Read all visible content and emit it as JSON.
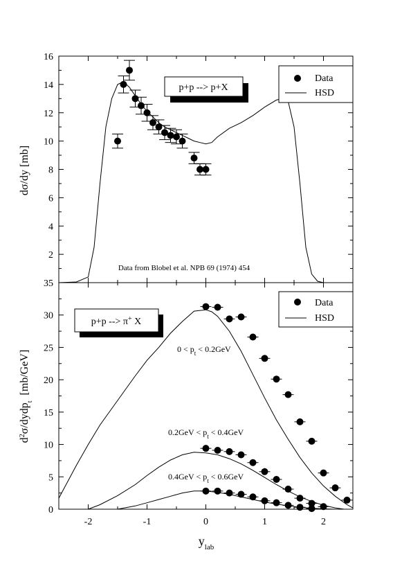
{
  "chart_data": [
    {
      "type": "scatter",
      "ylabel": "dσ/dy [mb]",
      "xlim": [
        -2.5,
        2.5
      ],
      "ylim": [
        0,
        16
      ],
      "y_ticks": [
        "2",
        "4",
        "6",
        "8",
        "10",
        "12",
        "14",
        "16"
      ],
      "reaction_label": "p+p --> p+X",
      "note": "Data from Blobel et al. NPB 69 (1974) 454",
      "legend": {
        "position": "top-right",
        "data_label": "Data",
        "model_label": "HSD"
      },
      "series": [
        {
          "name": "Data",
          "points": [
            {
              "x": -1.5,
              "y": 10.0,
              "err": 0.5
            },
            {
              "x": -1.4,
              "y": 14.0,
              "err": 0.6
            },
            {
              "x": -1.3,
              "y": 15.0,
              "err": 0.7
            },
            {
              "x": -1.2,
              "y": 13.0,
              "err": 0.6
            },
            {
              "x": -1.1,
              "y": 12.5,
              "err": 0.6
            },
            {
              "x": -1.0,
              "y": 12.0,
              "err": 0.6
            },
            {
              "x": -0.9,
              "y": 11.3,
              "err": 0.5
            },
            {
              "x": -0.8,
              "y": 11.0,
              "err": 0.5
            },
            {
              "x": -0.7,
              "y": 10.6,
              "err": 0.5
            },
            {
              "x": -0.6,
              "y": 10.4,
              "err": 0.5
            },
            {
              "x": -0.5,
              "y": 10.3,
              "err": 0.5
            },
            {
              "x": -0.4,
              "y": 10.0,
              "err": 0.5
            },
            {
              "x": -0.2,
              "y": 8.8,
              "err": 0.4
            },
            {
              "x": -0.1,
              "y": 8.0,
              "err": 0.4
            },
            {
              "x": 0.0,
              "y": 8.0,
              "err": 0.4
            }
          ]
        },
        {
          "name": "HSD",
          "line": [
            [
              -2.5,
              0.0
            ],
            [
              -2.2,
              0.05
            ],
            [
              -2.0,
              0.4
            ],
            [
              -1.9,
              2.5
            ],
            [
              -1.8,
              7.0
            ],
            [
              -1.7,
              11.0
            ],
            [
              -1.6,
              13.0
            ],
            [
              -1.5,
              14.0
            ],
            [
              -1.4,
              14.2
            ],
            [
              -1.3,
              13.8
            ],
            [
              -1.2,
              13.2
            ],
            [
              -1.1,
              12.6
            ],
            [
              -1.0,
              12.1
            ],
            [
              -0.9,
              11.7
            ],
            [
              -0.8,
              11.3
            ],
            [
              -0.7,
              11.0
            ],
            [
              -0.6,
              10.8
            ],
            [
              -0.5,
              10.6
            ],
            [
              -0.4,
              10.4
            ],
            [
              -0.3,
              10.2
            ],
            [
              -0.2,
              10.0
            ],
            [
              -0.1,
              9.9
            ],
            [
              0.0,
              9.8
            ],
            [
              0.1,
              9.9
            ],
            [
              0.2,
              10.3
            ],
            [
              0.4,
              10.9
            ],
            [
              0.6,
              11.3
            ],
            [
              0.8,
              11.8
            ],
            [
              1.0,
              12.4
            ],
            [
              1.2,
              12.9
            ],
            [
              1.3,
              13.0
            ],
            [
              1.4,
              12.8
            ],
            [
              1.5,
              11.0
            ],
            [
              1.6,
              7.0
            ],
            [
              1.7,
              2.5
            ],
            [
              1.8,
              0.6
            ],
            [
              1.9,
              0.1
            ],
            [
              2.0,
              0.0
            ],
            [
              2.5,
              0.0
            ]
          ]
        }
      ]
    },
    {
      "type": "scatter",
      "xlabel_main": "y",
      "xlabel_sub": "lab",
      "ylabel_parts": [
        "d",
        "2",
        "σ/dydp",
        "t",
        "  [mb/GeV]"
      ],
      "xlim": [
        -2.5,
        2.5
      ],
      "ylim": [
        0,
        35
      ],
      "x_ticks": [
        "-2",
        "-1",
        "0",
        "1",
        "2"
      ],
      "y_ticks": [
        "0",
        "5",
        "10",
        "15",
        "20",
        "25",
        "30",
        "35"
      ],
      "reaction_label": "p+p --> π",
      "reaction_sup": "+",
      "reaction_tail": " X",
      "legend": {
        "position": "top-right",
        "data_label": "Data",
        "model_label": "HSD"
      },
      "annotations": [
        {
          "a": "0 < p",
          "b": "t",
          "c": " < 0.2GeV"
        },
        {
          "a": "0.2GeV < p",
          "b": "t",
          "c": " < 0.4GeV"
        },
        {
          "a": "0.4GeV < p",
          "b": "t",
          "c": " < 0.6GeV"
        }
      ],
      "series": [
        {
          "name": "Data",
          "bin": "0 < pt < 0.2GeV",
          "points": [
            {
              "x": 0.0,
              "y": 31.3
            },
            {
              "x": 0.2,
              "y": 31.2
            },
            {
              "x": 0.4,
              "y": 29.4
            },
            {
              "x": 0.6,
              "y": 29.7
            },
            {
              "x": 0.8,
              "y": 26.6
            },
            {
              "x": 1.0,
              "y": 23.3
            },
            {
              "x": 1.2,
              "y": 20.1
            },
            {
              "x": 1.4,
              "y": 17.7
            },
            {
              "x": 1.6,
              "y": 13.5
            },
            {
              "x": 1.8,
              "y": 10.5
            },
            {
              "x": 2.0,
              "y": 5.6
            },
            {
              "x": 2.2,
              "y": 3.3
            },
            {
              "x": 2.4,
              "y": 1.4
            }
          ]
        },
        {
          "name": "Data",
          "bin": "0.2GeV < pt < 0.4GeV",
          "points": [
            {
              "x": 0.0,
              "y": 9.4
            },
            {
              "x": 0.2,
              "y": 9.1
            },
            {
              "x": 0.4,
              "y": 8.9
            },
            {
              "x": 0.6,
              "y": 8.4
            },
            {
              "x": 0.8,
              "y": 7.2
            },
            {
              "x": 1.0,
              "y": 5.8
            },
            {
              "x": 1.2,
              "y": 4.6
            },
            {
              "x": 1.4,
              "y": 3.1
            },
            {
              "x": 1.6,
              "y": 1.7
            },
            {
              "x": 1.8,
              "y": 0.9
            },
            {
              "x": 2.0,
              "y": 0.4
            }
          ]
        },
        {
          "name": "Data",
          "bin": "0.4GeV < pt < 0.6GeV",
          "points": [
            {
              "x": 0.0,
              "y": 2.8
            },
            {
              "x": 0.2,
              "y": 2.8
            },
            {
              "x": 0.4,
              "y": 2.5
            },
            {
              "x": 0.6,
              "y": 2.3
            },
            {
              "x": 0.8,
              "y": 1.9
            },
            {
              "x": 1.0,
              "y": 1.3
            },
            {
              "x": 1.2,
              "y": 1.0
            },
            {
              "x": 1.4,
              "y": 0.6
            },
            {
              "x": 1.6,
              "y": 0.3
            },
            {
              "x": 1.8,
              "y": 0.1
            }
          ]
        },
        {
          "name": "HSD",
          "bin": "0 < pt < 0.2GeV",
          "line": [
            [
              -2.5,
              1.7
            ],
            [
              -2.2,
              6.8
            ],
            [
              -2.0,
              10.0
            ],
            [
              -1.8,
              13.0
            ],
            [
              -1.5,
              16.8
            ],
            [
              -1.2,
              20.6
            ],
            [
              -1.0,
              23.0
            ],
            [
              -0.8,
              25.0
            ],
            [
              -0.6,
              27.2
            ],
            [
              -0.4,
              29.0
            ],
            [
              -0.2,
              30.6
            ],
            [
              0.0,
              30.8
            ],
            [
              0.1,
              30.5
            ],
            [
              0.2,
              29.8
            ],
            [
              0.4,
              27.5
            ],
            [
              0.6,
              24.4
            ],
            [
              0.8,
              20.8
            ],
            [
              1.0,
              17.2
            ],
            [
              1.2,
              13.8
            ],
            [
              1.4,
              10.8
            ],
            [
              1.6,
              8.0
            ],
            [
              1.8,
              5.6
            ],
            [
              2.0,
              3.6
            ],
            [
              2.2,
              2.0
            ],
            [
              2.4,
              0.7
            ],
            [
              2.5,
              0.2
            ]
          ]
        },
        {
          "name": "HSD",
          "bin": "0.2GeV < pt < 0.4GeV",
          "line": [
            [
              -2.0,
              0.0
            ],
            [
              -1.8,
              0.7
            ],
            [
              -1.5,
              2.1
            ],
            [
              -1.2,
              3.8
            ],
            [
              -1.0,
              5.2
            ],
            [
              -0.8,
              6.5
            ],
            [
              -0.6,
              7.6
            ],
            [
              -0.4,
              8.4
            ],
            [
              -0.2,
              8.8
            ],
            [
              0.0,
              8.7
            ],
            [
              0.2,
              8.4
            ],
            [
              0.4,
              7.8
            ],
            [
              0.6,
              7.0
            ],
            [
              0.8,
              6.0
            ],
            [
              1.0,
              4.9
            ],
            [
              1.2,
              3.8
            ],
            [
              1.4,
              2.8
            ],
            [
              1.6,
              1.9
            ],
            [
              1.8,
              1.2
            ],
            [
              2.0,
              0.6
            ],
            [
              2.2,
              0.2
            ],
            [
              2.35,
              0.0
            ]
          ]
        },
        {
          "name": "HSD",
          "bin": "0.4GeV < pt < 0.6GeV",
          "line": [
            [
              -1.5,
              0.0
            ],
            [
              -1.2,
              0.5
            ],
            [
              -1.0,
              1.0
            ],
            [
              -0.8,
              1.5
            ],
            [
              -0.6,
              2.0
            ],
            [
              -0.4,
              2.5
            ],
            [
              -0.2,
              2.8
            ],
            [
              0.0,
              2.8
            ],
            [
              0.2,
              2.6
            ],
            [
              0.4,
              2.3
            ],
            [
              0.6,
              1.9
            ],
            [
              0.8,
              1.5
            ],
            [
              1.0,
              1.1
            ],
            [
              1.2,
              0.8
            ],
            [
              1.4,
              0.5
            ],
            [
              1.6,
              0.3
            ],
            [
              1.8,
              0.15
            ],
            [
              2.0,
              0.05
            ],
            [
              2.2,
              0.0
            ]
          ]
        }
      ]
    }
  ]
}
